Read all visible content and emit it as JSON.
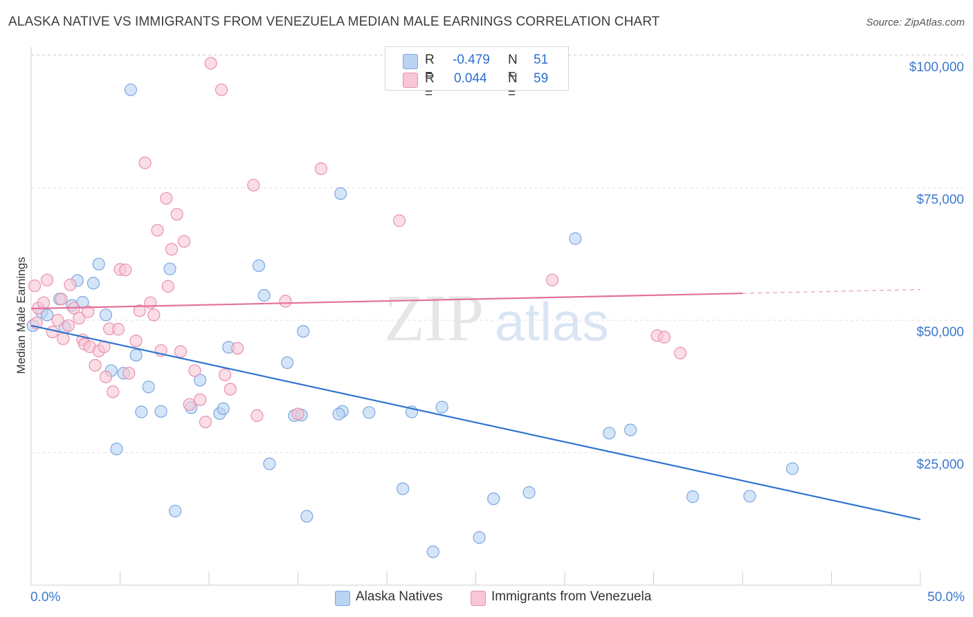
{
  "title": "ALASKA NATIVE VS IMMIGRANTS FROM VENEZUELA MEDIAN MALE EARNINGS CORRELATION CHART",
  "source": "Source: ZipAtlas.com",
  "watermark": {
    "zip": "ZIP",
    "atlas": "atlas"
  },
  "legend": {
    "r_label": "R =",
    "n_label": "N =",
    "series": [
      {
        "name": "Alaska Natives",
        "r": "-0.479",
        "n": "51",
        "fill": "#b9d3f3",
        "stroke": "#7aa7e0"
      },
      {
        "name": "Immigrants from Venezuela",
        "r": "0.044",
        "n": "59",
        "fill": "#f8c6d6",
        "stroke": "#e890ab"
      }
    ]
  },
  "chart_data": {
    "type": "scatter",
    "title": "ALASKA NATIVE VS IMMIGRANTS FROM VENEZUELA MEDIAN MALE EARNINGS CORRELATION CHART",
    "xlabel": "",
    "ylabel": "Median Male Earnings",
    "xlim": [
      0,
      50
    ],
    "ylim": [
      0,
      105000
    ],
    "x_tick_labels": [
      "0.0%",
      "50.0%"
    ],
    "y_ticks": [
      {
        "value": 25000,
        "label": "$25,000"
      },
      {
        "value": 50000,
        "label": "$50,000"
      },
      {
        "value": 75000,
        "label": "$75,000"
      },
      {
        "value": 100000,
        "label": "$100,000"
      }
    ],
    "series": [
      {
        "name": "Alaska Natives",
        "color": "#7aa7e0",
        "fill": "#b9d3f3",
        "trend_color": "#2f74d0",
        "trend": {
          "x0": 0,
          "y0": 49000,
          "x1": 50,
          "y1": 12400,
          "dashed_from": null
        },
        "points": [
          [
            0.1,
            49000
          ],
          [
            0.6,
            51500
          ],
          [
            0.9,
            51000
          ],
          [
            1.6,
            54000
          ],
          [
            1.9,
            48600
          ],
          [
            2.3,
            52800
          ],
          [
            2.6,
            57500
          ],
          [
            2.9,
            53400
          ],
          [
            3.5,
            57000
          ],
          [
            3.8,
            60600
          ],
          [
            4.2,
            51000
          ],
          [
            4.5,
            40500
          ],
          [
            4.8,
            25700
          ],
          [
            5.2,
            40000
          ],
          [
            5.6,
            93500
          ],
          [
            5.9,
            43400
          ],
          [
            6.2,
            32700
          ],
          [
            6.6,
            37400
          ],
          [
            7.3,
            32800
          ],
          [
            7.8,
            59700
          ],
          [
            8.1,
            14000
          ],
          [
            9.0,
            33500
          ],
          [
            9.5,
            38700
          ],
          [
            10.6,
            32400
          ],
          [
            10.8,
            33300
          ],
          [
            11.1,
            44900
          ],
          [
            12.8,
            60300
          ],
          [
            13.1,
            54700
          ],
          [
            13.4,
            22900
          ],
          [
            14.4,
            42000
          ],
          [
            14.8,
            32000
          ],
          [
            15.3,
            47900
          ],
          [
            15.2,
            32100
          ],
          [
            15.5,
            13000
          ],
          [
            17.4,
            73900
          ],
          [
            17.5,
            32800
          ],
          [
            17.3,
            32300
          ],
          [
            19.0,
            32600
          ],
          [
            20.9,
            18200
          ],
          [
            21.4,
            32700
          ],
          [
            22.6,
            6300
          ],
          [
            23.1,
            33600
          ],
          [
            25.2,
            9000
          ],
          [
            26.0,
            16300
          ],
          [
            28.0,
            17500
          ],
          [
            30.6,
            65400
          ],
          [
            32.5,
            28700
          ],
          [
            33.7,
            29300
          ],
          [
            37.2,
            16700
          ],
          [
            40.4,
            16800
          ],
          [
            42.8,
            22000
          ]
        ]
      },
      {
        "name": "Immigrants from Venezuela",
        "color": "#e890ab",
        "fill": "#f8c6d6",
        "trend_color": "#e3709a",
        "trend": {
          "x0": 0,
          "y0": 52200,
          "x1": 50,
          "y1": 55800,
          "dashed_from": 40
        },
        "points": [
          [
            0.2,
            56500
          ],
          [
            0.4,
            52300
          ],
          [
            0.9,
            57600
          ],
          [
            1.2,
            47800
          ],
          [
            1.5,
            50000
          ],
          [
            1.7,
            54000
          ],
          [
            2.1,
            49000
          ],
          [
            2.2,
            56700
          ],
          [
            2.4,
            52300
          ],
          [
            2.7,
            50400
          ],
          [
            2.9,
            46300
          ],
          [
            3.0,
            45500
          ],
          [
            3.3,
            45000
          ],
          [
            3.6,
            41500
          ],
          [
            3.8,
            44200
          ],
          [
            4.1,
            45000
          ],
          [
            4.2,
            39300
          ],
          [
            4.4,
            48400
          ],
          [
            4.6,
            36500
          ],
          [
            4.9,
            48300
          ],
          [
            5.0,
            59600
          ],
          [
            5.3,
            59500
          ],
          [
            5.5,
            40000
          ],
          [
            5.9,
            46100
          ],
          [
            6.1,
            51800
          ],
          [
            6.4,
            79700
          ],
          [
            6.7,
            53300
          ],
          [
            6.9,
            51000
          ],
          [
            7.1,
            67000
          ],
          [
            7.3,
            44300
          ],
          [
            7.6,
            73000
          ],
          [
            7.7,
            56400
          ],
          [
            7.9,
            63400
          ],
          [
            8.2,
            70000
          ],
          [
            8.4,
            44100
          ],
          [
            8.6,
            64900
          ],
          [
            8.9,
            34100
          ],
          [
            9.2,
            40500
          ],
          [
            9.5,
            35000
          ],
          [
            9.8,
            30800
          ],
          [
            10.1,
            98500
          ],
          [
            10.7,
            93500
          ],
          [
            10.9,
            39700
          ],
          [
            11.2,
            37000
          ],
          [
            11.6,
            44700
          ],
          [
            12.5,
            75500
          ],
          [
            12.7,
            32000
          ],
          [
            14.3,
            53600
          ],
          [
            15.0,
            32300
          ],
          [
            16.3,
            78600
          ],
          [
            20.7,
            68800
          ],
          [
            29.3,
            57600
          ],
          [
            35.2,
            47100
          ],
          [
            35.6,
            46800
          ],
          [
            36.5,
            43800
          ],
          [
            0.3,
            49500
          ],
          [
            0.7,
            53300
          ],
          [
            1.8,
            46500
          ],
          [
            3.2,
            51600
          ]
        ]
      }
    ],
    "legend_position": "top-center",
    "grid": true
  }
}
